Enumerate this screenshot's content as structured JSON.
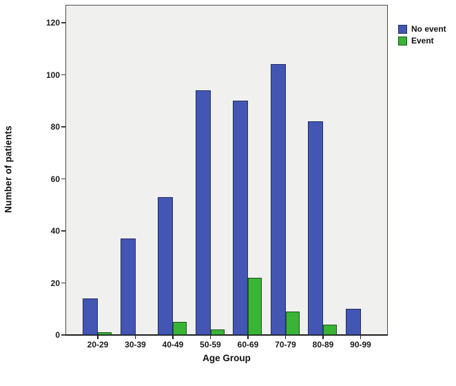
{
  "figure": {
    "y_axis_title": "Number of patients",
    "x_axis_title": "Age Group"
  },
  "legend": {
    "items": [
      {
        "label": "No event",
        "color": "#4356b4",
        "border": "#252e63"
      },
      {
        "label": "Event",
        "color": "#3ab437",
        "border": "#1c521c"
      }
    ]
  },
  "chart_data": {
    "type": "bar",
    "title": "",
    "xlabel": "Age Group",
    "ylabel": "Number of patients",
    "categories": [
      "20-29",
      "30-39",
      "40-49",
      "50-59",
      "60-69",
      "70-79",
      "80-89",
      "90-99"
    ],
    "series": [
      {
        "name": "No event",
        "color": "#4356b4",
        "border": "#252e63",
        "values": [
          14,
          37,
          53,
          94,
          90,
          104,
          82,
          10
        ]
      },
      {
        "name": "Event",
        "color": "#3ab437",
        "border": "#1c521c",
        "values": [
          1,
          0,
          5,
          2,
          22,
          9,
          4,
          0
        ]
      }
    ],
    "ylim": [
      0,
      127
    ],
    "yticks": [
      0,
      20,
      40,
      60,
      80,
      100,
      120
    ],
    "grid": false,
    "legend_position": "top-right-outside",
    "plot_background": "#f0f0ee"
  }
}
